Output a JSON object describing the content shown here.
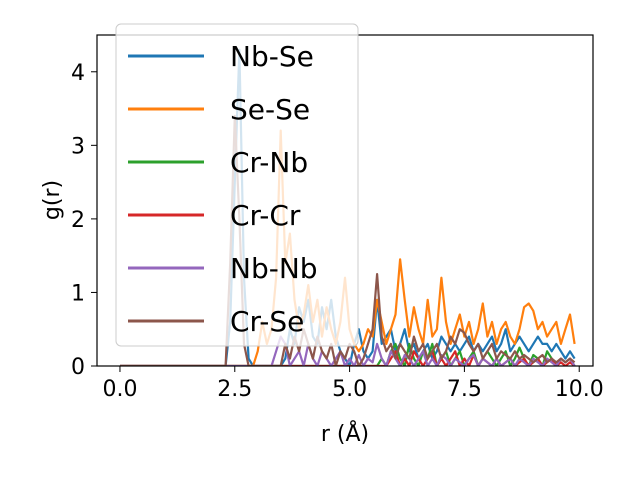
{
  "chart_data": {
    "type": "line",
    "xlabel": "r (Å)",
    "ylabel": "g(r)",
    "xlim": [
      -0.5,
      10.3
    ],
    "ylim": [
      0,
      4.5
    ],
    "xticks": [
      0.0,
      2.5,
      5.0,
      7.5,
      10.0
    ],
    "xtick_labels": [
      "0.0",
      "2.5",
      "5.0",
      "7.5",
      "10.0"
    ],
    "yticks": [
      0,
      1,
      2,
      3,
      4
    ],
    "ytick_labels": [
      "0",
      "1",
      "2",
      "3",
      "4"
    ],
    "grid": false,
    "legend_position": "top-left",
    "series": [
      {
        "name": "Nb-Se",
        "color": "#1f77b4",
        "x": [
          0.0,
          2.3,
          2.4,
          2.5,
          2.6,
          2.7,
          2.8,
          2.9,
          3.5,
          3.6,
          3.7,
          3.8,
          3.9,
          4.0,
          4.1,
          4.2,
          4.3,
          4.4,
          4.5,
          4.6,
          4.7,
          4.8,
          4.9,
          5.0,
          5.1,
          5.2,
          5.3,
          5.4,
          5.5,
          5.6,
          5.7,
          5.8,
          5.9,
          6.0,
          6.1,
          6.2,
          6.3,
          6.4,
          6.5,
          6.6,
          6.7,
          6.8,
          6.9,
          7.0,
          7.1,
          7.2,
          7.3,
          7.4,
          7.5,
          7.6,
          7.7,
          7.8,
          7.9,
          8.0,
          8.1,
          8.2,
          8.3,
          8.4,
          8.5,
          8.6,
          8.7,
          8.8,
          8.9,
          9.0,
          9.1,
          9.2,
          9.3,
          9.4,
          9.5,
          9.6,
          9.7,
          9.8,
          9.9
        ],
        "y": [
          0.0,
          0.0,
          0.6,
          2.5,
          4.3,
          1.2,
          0.1,
          0.0,
          0.0,
          0.1,
          0.5,
          0.3,
          0.8,
          0.6,
          0.9,
          0.4,
          0.3,
          0.8,
          0.5,
          0.9,
          0.4,
          0.2,
          0.1,
          0.0,
          0.3,
          0.5,
          0.2,
          0.1,
          0.2,
          0.9,
          0.3,
          0.4,
          0.5,
          0.2,
          0.3,
          0.5,
          0.2,
          0.3,
          0.1,
          0.2,
          0.3,
          0.1,
          0.2,
          0.4,
          0.3,
          0.2,
          0.3,
          0.2,
          0.3,
          0.4,
          0.2,
          0.3,
          0.2,
          0.3,
          0.4,
          0.2,
          0.3,
          0.5,
          0.2,
          0.3,
          0.4,
          0.3,
          0.2,
          0.3,
          0.4,
          0.3,
          0.3,
          0.2,
          0.3,
          0.2,
          0.1,
          0.2,
          0.1
        ]
      },
      {
        "name": "Se-Se",
        "color": "#ff7f0e",
        "x": [
          0.0,
          2.9,
          3.0,
          3.1,
          3.2,
          3.3,
          3.4,
          3.5,
          3.6,
          3.7,
          3.8,
          3.9,
          4.0,
          4.1,
          4.2,
          4.3,
          4.4,
          4.5,
          4.6,
          4.7,
          4.8,
          4.9,
          5.0,
          5.1,
          5.2,
          5.3,
          5.4,
          5.5,
          5.6,
          5.7,
          5.8,
          5.9,
          6.0,
          6.1,
          6.2,
          6.3,
          6.4,
          6.5,
          6.6,
          6.7,
          6.8,
          6.9,
          7.0,
          7.1,
          7.2,
          7.3,
          7.4,
          7.5,
          7.6,
          7.7,
          7.8,
          7.9,
          8.0,
          8.1,
          8.2,
          8.3,
          8.4,
          8.5,
          8.6,
          8.7,
          8.8,
          8.9,
          9.0,
          9.1,
          9.2,
          9.3,
          9.4,
          9.5,
          9.6,
          9.7,
          9.8,
          9.9
        ],
        "y": [
          0.0,
          0.0,
          0.2,
          0.6,
          0.3,
          0.5,
          1.2,
          3.2,
          1.4,
          1.8,
          0.9,
          0.5,
          0.7,
          1.1,
          0.6,
          0.9,
          0.4,
          0.8,
          0.5,
          0.3,
          0.6,
          1.2,
          0.5,
          0.3,
          0.2,
          0.3,
          0.5,
          0.4,
          0.9,
          0.6,
          0.3,
          0.5,
          0.7,
          1.45,
          0.9,
          0.4,
          0.8,
          0.5,
          0.3,
          0.9,
          0.4,
          0.5,
          1.2,
          0.6,
          0.3,
          0.5,
          0.7,
          0.4,
          0.6,
          0.3,
          0.5,
          0.85,
          0.4,
          0.6,
          0.3,
          0.5,
          0.6,
          0.4,
          0.3,
          0.5,
          0.8,
          0.85,
          0.75,
          0.5,
          0.6,
          0.4,
          0.5,
          0.6,
          0.3,
          0.5,
          0.7,
          0.3
        ]
      },
      {
        "name": "Cr-Nb",
        "color": "#2ca02c",
        "x": [
          0.0,
          5.6,
          5.7,
          5.8,
          5.9,
          6.0,
          6.1,
          6.2,
          6.3,
          6.4,
          6.5,
          6.6,
          6.7,
          6.8,
          6.9,
          7.0,
          7.1,
          7.2,
          7.3,
          7.4,
          7.5,
          7.6,
          7.7,
          7.8,
          7.9,
          8.0,
          8.1,
          8.2,
          8.3,
          8.4,
          8.5,
          8.6,
          8.7,
          8.8,
          8.9,
          9.0,
          9.1,
          9.2,
          9.3,
          9.4,
          9.5,
          9.6,
          9.7,
          9.8,
          9.9
        ],
        "y": [
          0.0,
          0.0,
          0.1,
          0.0,
          0.2,
          0.3,
          0.1,
          0.0,
          0.3,
          0.1,
          0.0,
          0.2,
          0.1,
          0.3,
          0.0,
          0.1,
          0.2,
          0.0,
          0.1,
          0.2,
          0.0,
          0.1,
          0.2,
          0.0,
          0.1,
          0.2,
          0.1,
          0.0,
          0.1,
          0.2,
          0.0,
          0.1,
          0.25,
          0.1,
          0.0,
          0.15,
          0.1,
          0.0,
          0.2,
          0.1,
          0.0,
          0.1,
          0.05,
          0.1,
          0.0
        ]
      },
      {
        "name": "Cr-Cr",
        "color": "#d62728",
        "x": [
          0.0,
          5.8,
          5.9,
          6.0,
          6.1,
          6.2,
          6.3,
          6.4,
          6.5,
          6.6,
          6.7,
          6.8,
          6.9,
          7.0,
          7.1,
          7.2,
          7.3,
          7.4,
          7.5,
          7.6,
          7.7,
          7.8,
          7.9,
          8.0,
          8.1,
          8.2,
          8.3,
          8.4,
          8.5,
          8.6,
          8.7,
          8.8,
          8.9,
          9.0,
          9.1,
          9.2,
          9.3,
          9.4,
          9.5,
          9.6,
          9.7,
          9.8,
          9.9
        ],
        "y": [
          0.0,
          0.0,
          0.1,
          0.2,
          0.0,
          0.1,
          0.0,
          0.2,
          0.1,
          0.0,
          0.1,
          0.2,
          0.0,
          0.1,
          0.0,
          0.1,
          0.2,
          0.0,
          0.1,
          0.0,
          0.15,
          0.0,
          0.1,
          0.05,
          0.0,
          0.1,
          0.0,
          0.05,
          0.1,
          0.0,
          0.05,
          0.1,
          0.0,
          0.05,
          0.1,
          0.0,
          0.05,
          0.1,
          0.0,
          0.05,
          0.0,
          0.05,
          0.0
        ]
      },
      {
        "name": "Nb-Nb",
        "color": "#9467bd",
        "x": [
          0.0,
          3.3,
          3.4,
          3.5,
          3.6,
          3.7,
          3.8,
          3.9,
          4.0,
          4.1,
          4.2,
          4.3,
          4.4,
          4.5,
          4.6,
          4.7,
          4.8,
          4.9,
          5.0,
          5.1,
          5.2,
          5.3,
          5.4,
          5.5,
          5.6,
          5.7,
          5.8,
          5.9,
          6.0,
          6.1,
          6.2,
          6.3,
          6.4,
          6.5,
          6.6,
          6.7,
          6.8,
          6.9,
          7.0,
          7.1,
          7.2,
          7.3,
          7.4,
          7.5,
          7.6,
          7.7,
          7.8,
          7.9,
          8.0,
          8.1,
          8.2,
          8.3,
          8.4,
          8.5,
          8.6,
          8.7,
          8.8,
          8.9,
          9.0,
          9.1,
          9.2,
          9.3,
          9.4,
          9.5,
          9.6,
          9.7,
          9.8,
          9.9
        ],
        "y": [
          0.0,
          0.0,
          0.2,
          0.4,
          0.3,
          0.0,
          0.1,
          0.2,
          0.0,
          0.3,
          0.1,
          0.0,
          0.2,
          0.1,
          0.0,
          0.1,
          0.2,
          0.0,
          0.1,
          0.0,
          0.15,
          0.0,
          0.1,
          0.05,
          0.3,
          0.1,
          0.0,
          0.2,
          0.1,
          0.0,
          0.15,
          0.1,
          0.0,
          0.1,
          0.2,
          0.0,
          0.1,
          0.0,
          0.15,
          0.1,
          0.0,
          0.1,
          0.05,
          0.0,
          0.1,
          0.15,
          0.0,
          0.1,
          0.05,
          0.0,
          0.1,
          0.0,
          0.05,
          0.1,
          0.0,
          0.1,
          0.05,
          0.0,
          0.1,
          0.05,
          0.0,
          0.1,
          0.05,
          0.0,
          0.1,
          0.05,
          0.1,
          0.0
        ]
      },
      {
        "name": "Cr-Se",
        "color": "#8c564b",
        "x": [
          0.0,
          2.3,
          2.4,
          2.5,
          2.6,
          2.7,
          2.8,
          3.5,
          3.6,
          3.7,
          3.8,
          3.9,
          4.0,
          4.1,
          4.2,
          4.3,
          4.4,
          4.5,
          4.6,
          4.7,
          4.8,
          4.9,
          5.0,
          5.1,
          5.2,
          5.3,
          5.4,
          5.5,
          5.6,
          5.7,
          5.8,
          5.9,
          6.0,
          6.1,
          6.2,
          6.3,
          6.4,
          6.5,
          6.6,
          6.7,
          6.8,
          6.9,
          7.0,
          7.1,
          7.2,
          7.3,
          7.4,
          7.5,
          7.6,
          7.7,
          7.8,
          7.9,
          8.0,
          8.1,
          8.2,
          8.3,
          8.4,
          8.5,
          8.6,
          8.7,
          8.8,
          8.9,
          9.0,
          9.1,
          9.2,
          9.3,
          9.4,
          9.5,
          9.6,
          9.7,
          9.8,
          9.9
        ],
        "y": [
          0.0,
          0.0,
          1.4,
          3.4,
          2.0,
          0.3,
          0.0,
          0.0,
          0.3,
          0.1,
          0.4,
          0.2,
          0.5,
          0.3,
          0.1,
          0.4,
          0.2,
          0.1,
          0.3,
          0.0,
          0.2,
          0.1,
          0.3,
          0.2,
          0.0,
          0.1,
          0.3,
          0.5,
          1.25,
          0.4,
          0.2,
          0.3,
          0.1,
          0.3,
          0.2,
          0.1,
          0.4,
          0.2,
          0.3,
          0.1,
          0.2,
          0.3,
          0.1,
          0.2,
          0.4,
          0.3,
          0.5,
          0.45,
          0.3,
          0.2,
          0.3,
          0.1,
          0.2,
          0.3,
          0.1,
          0.2,
          0.15,
          0.1,
          0.2,
          0.1,
          0.15,
          0.1,
          0.05,
          0.1,
          0.15,
          0.05,
          0.1,
          0.05,
          0.1,
          0.05,
          0.1,
          0.05
        ]
      }
    ]
  }
}
